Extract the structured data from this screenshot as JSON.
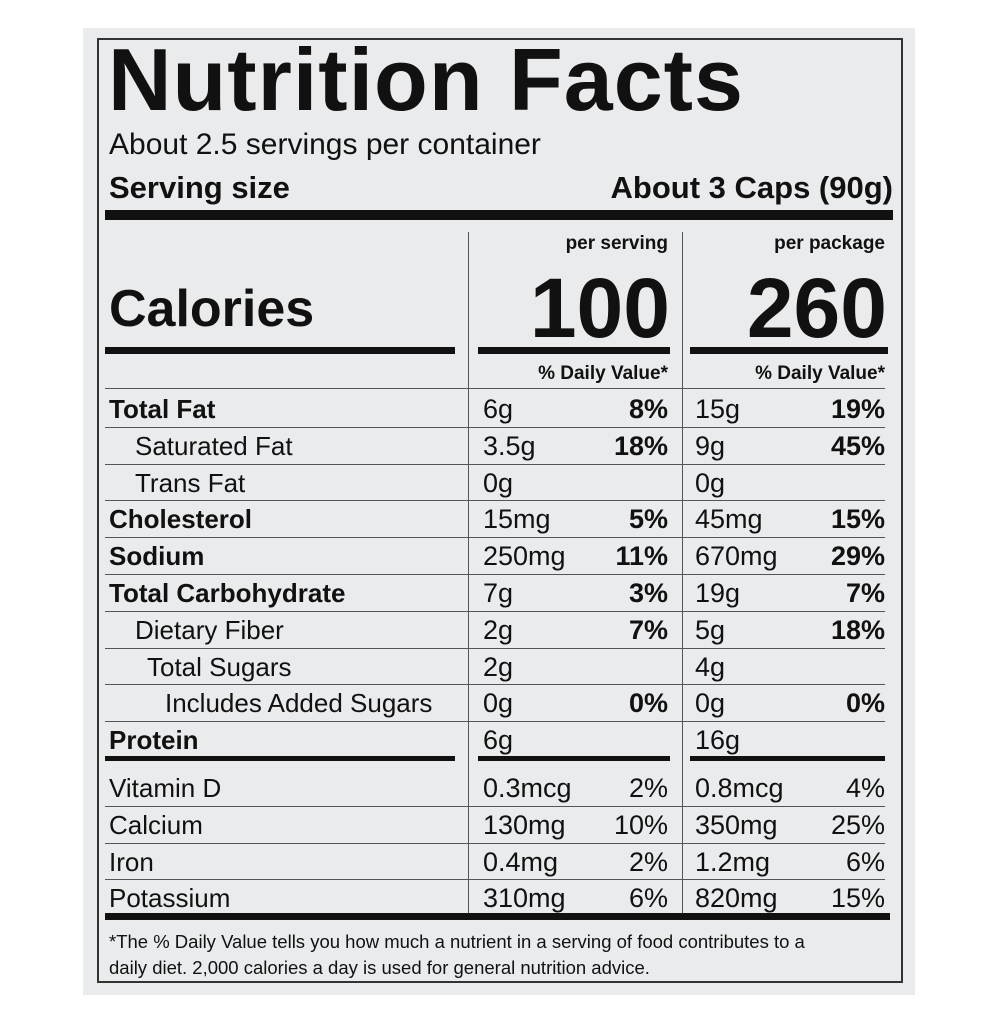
{
  "header": {
    "title": "Nutrition Facts",
    "servings": "About 2.5 servings per container",
    "serving_size_label": "Serving size",
    "serving_size_value": "About 3 Caps (90g)"
  },
  "columns": [
    "per serving",
    "per package"
  ],
  "calories": {
    "label": "Calories",
    "values": [
      100,
      260
    ]
  },
  "daily_value_headers": [
    "% Daily Value*",
    "% Daily Value*"
  ],
  "nutrients": [
    {
      "name": "Total Fat",
      "per_serving": {
        "amount": "6g",
        "dv": "8%"
      },
      "per_package": {
        "amount": "15g",
        "dv": "19%"
      }
    },
    {
      "name": "Saturated Fat",
      "per_serving": {
        "amount": "3.5g",
        "dv": "18%"
      },
      "per_package": {
        "amount": "9g",
        "dv": "45%"
      }
    },
    {
      "name": "Trans Fat",
      "per_serving": {
        "amount": "0g"
      },
      "per_package": {
        "amount": "0g"
      }
    },
    {
      "name": "Cholesterol",
      "per_serving": {
        "amount": "15mg",
        "dv": "5%"
      },
      "per_package": {
        "amount": "45mg",
        "dv": "15%"
      }
    },
    {
      "name": "Sodium",
      "per_serving": {
        "amount": "250mg",
        "dv": "11%"
      },
      "per_package": {
        "amount": "670mg",
        "dv": "29%"
      }
    },
    {
      "name": "Total Carbohydrate",
      "per_serving": {
        "amount": "7g",
        "dv": "3%"
      },
      "per_package": {
        "amount": "19g",
        "dv": "7%"
      }
    },
    {
      "name": "Dietary Fiber",
      "per_serving": {
        "amount": "2g",
        "dv": "7%"
      },
      "per_package": {
        "amount": "5g",
        "dv": "18%"
      }
    },
    {
      "name": "Total Sugars",
      "per_serving": {
        "amount": "2g"
      },
      "per_package": {
        "amount": "4g"
      }
    },
    {
      "name": "Includes Added Sugars",
      "per_serving": {
        "amount": "0g",
        "dv": "0%"
      },
      "per_package": {
        "amount": "0g",
        "dv": "0%"
      }
    },
    {
      "name": "Protein",
      "per_serving": {
        "amount": "6g"
      },
      "per_package": {
        "amount": "16g"
      }
    }
  ],
  "vitamins": [
    {
      "name": "Vitamin D",
      "per_serving": {
        "amount": "0.3mcg",
        "dv": "2%"
      },
      "per_package": {
        "amount": "0.8mcg",
        "dv": "4%"
      }
    },
    {
      "name": "Calcium",
      "per_serving": {
        "amount": "130mg",
        "dv": "10%"
      },
      "per_package": {
        "amount": "350mg",
        "dv": "25%"
      }
    },
    {
      "name": "Iron",
      "per_serving": {
        "amount": "0.4mg",
        "dv": "2%"
      },
      "per_package": {
        "amount": "1.2mg",
        "dv": "6%"
      }
    },
    {
      "name": "Potassium",
      "per_serving": {
        "amount": "310mg",
        "dv": "6%"
      },
      "per_package": {
        "amount": "820mg",
        "dv": "15%"
      }
    }
  ],
  "footnote": [
    "*The % Daily Value tells you how much a nutrient in a serving of food contributes to a",
    "daily diet. 2,000 calories a day is used for general nutrition advice."
  ]
}
